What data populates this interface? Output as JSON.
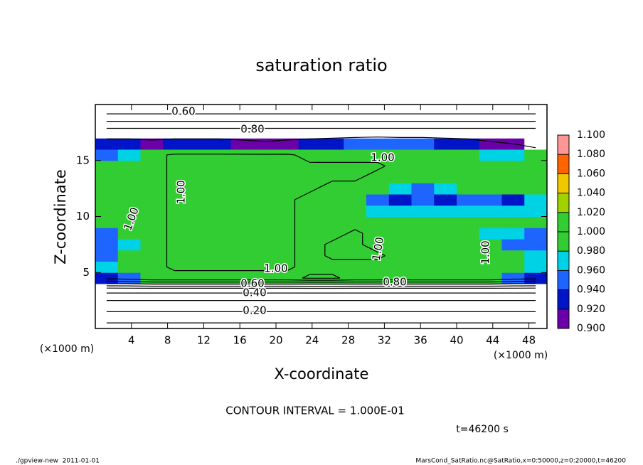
{
  "chart_data": {
    "type": "heatmap",
    "title": "saturation ratio",
    "x_label": "X-coordinate",
    "y_label": "Z-coordinate",
    "x_unit": "(×1000 m)",
    "y_unit": "(×1000 m)",
    "xlim": [
      0,
      50
    ],
    "ylim": [
      0,
      20
    ],
    "xticks": [
      4,
      8,
      12,
      16,
      20,
      24,
      28,
      32,
      36,
      40,
      44,
      48
    ],
    "yticks": [
      5,
      10,
      15
    ],
    "x": [
      1.25,
      3.75,
      6.25,
      8.75,
      11.25,
      13.75,
      16.25,
      18.75,
      21.25,
      23.75,
      26.25,
      28.75,
      31.25,
      33.75,
      36.25,
      38.75,
      41.25,
      43.75,
      46.25,
      48.75
    ],
    "y": [
      0.5,
      1.5,
      2.5,
      3.5,
      4.5,
      5.5,
      6.5,
      7.5,
      8.5,
      9.5,
      10.5,
      11.5,
      12.5,
      13.5,
      14.5,
      15.5,
      16.5,
      17.5,
      18.5,
      19.5
    ],
    "values": [
      [
        0.1,
        0.1,
        0.1,
        0.1,
        0.1,
        0.1,
        0.1,
        0.1,
        0.1,
        0.1,
        0.1,
        0.1,
        0.1,
        0.1,
        0.1,
        0.1,
        0.1,
        0.1,
        0.1,
        0.1
      ],
      [
        0.2,
        0.2,
        0.2,
        0.2,
        0.2,
        0.2,
        0.2,
        0.2,
        0.2,
        0.2,
        0.2,
        0.2,
        0.2,
        0.2,
        0.2,
        0.2,
        0.2,
        0.2,
        0.2,
        0.2
      ],
      [
        0.3,
        0.3,
        0.3,
        0.3,
        0.3,
        0.3,
        0.3,
        0.3,
        0.3,
        0.3,
        0.3,
        0.3,
        0.3,
        0.3,
        0.3,
        0.3,
        0.3,
        0.3,
        0.3,
        0.3
      ],
      [
        0.45,
        0.45,
        0.45,
        0.45,
        0.45,
        0.45,
        0.45,
        0.45,
        0.45,
        0.45,
        0.45,
        0.45,
        0.45,
        0.45,
        0.45,
        0.45,
        0.45,
        0.45,
        0.45,
        0.45
      ],
      [
        0.93,
        0.95,
        0.99,
        0.99,
        0.99,
        0.99,
        0.99,
        0.99,
        0.99,
        1.005,
        1.005,
        0.99,
        0.99,
        0.99,
        0.99,
        0.99,
        0.99,
        0.99,
        0.95,
        0.93
      ],
      [
        0.97,
        0.99,
        0.99,
        1.005,
        1.005,
        1.005,
        1.005,
        1.005,
        1.005,
        0.99,
        0.99,
        0.99,
        0.99,
        0.99,
        0.99,
        0.99,
        0.99,
        0.99,
        0.99,
        0.98
      ],
      [
        0.96,
        0.99,
        0.99,
        1.005,
        1.005,
        1.005,
        1.005,
        1.005,
        1.005,
        0.99,
        1.005,
        1.005,
        1.005,
        0.99,
        0.99,
        0.99,
        0.99,
        0.99,
        0.99,
        0.97
      ],
      [
        0.95,
        0.98,
        0.99,
        1.005,
        1.005,
        1.005,
        1.005,
        1.005,
        1.005,
        0.99,
        1.005,
        1.005,
        0.99,
        0.99,
        0.99,
        0.99,
        0.99,
        0.99,
        0.96,
        0.95
      ],
      [
        0.96,
        0.99,
        0.99,
        1.005,
        1.005,
        1.005,
        1.005,
        1.005,
        1.005,
        0.99,
        0.99,
        1.005,
        0.99,
        0.99,
        0.99,
        0.99,
        0.99,
        0.98,
        0.97,
        0.96
      ],
      [
        0.99,
        0.99,
        0.99,
        1.005,
        1.005,
        1.005,
        1.005,
        1.005,
        1.005,
        0.99,
        0.99,
        0.99,
        0.99,
        0.99,
        0.99,
        0.99,
        0.99,
        0.99,
        0.99,
        0.99
      ],
      [
        0.99,
        0.99,
        0.99,
        1.005,
        1.005,
        1.005,
        1.005,
        1.005,
        1.005,
        0.99,
        0.99,
        0.99,
        0.98,
        0.97,
        0.97,
        0.97,
        0.97,
        0.97,
        0.97,
        0.98
      ],
      [
        0.99,
        0.99,
        0.99,
        1.005,
        1.005,
        1.005,
        1.005,
        1.005,
        1.005,
        0.99,
        0.99,
        0.99,
        0.95,
        0.94,
        0.95,
        0.94,
        0.95,
        0.95,
        0.94,
        0.97
      ],
      [
        0.99,
        0.99,
        0.99,
        1.005,
        1.005,
        1.005,
        1.005,
        1.005,
        1.005,
        1.005,
        0.99,
        0.99,
        0.99,
        0.97,
        0.96,
        0.98,
        0.99,
        0.99,
        0.99,
        0.99
      ],
      [
        0.99,
        0.99,
        0.99,
        1.005,
        1.005,
        1.005,
        1.005,
        1.005,
        1.005,
        1.005,
        1.005,
        1.005,
        0.99,
        0.99,
        0.99,
        0.99,
        0.99,
        0.99,
        0.99,
        0.99
      ],
      [
        0.99,
        0.99,
        0.99,
        1.005,
        1.005,
        1.005,
        1.005,
        1.005,
        1.005,
        1.005,
        1.005,
        1.005,
        1.005,
        0.99,
        0.99,
        0.99,
        0.99,
        0.99,
        0.99,
        0.99
      ],
      [
        0.95,
        0.97,
        0.99,
        1.005,
        1.005,
        1.005,
        1.005,
        1.005,
        1.005,
        0.99,
        0.99,
        0.99,
        0.99,
        0.99,
        0.99,
        0.99,
        0.99,
        0.98,
        0.97,
        0.99
      ],
      [
        0.93,
        0.93,
        0.92,
        0.93,
        0.93,
        0.93,
        0.92,
        0.91,
        0.92,
        0.93,
        0.94,
        0.95,
        0.96,
        0.95,
        0.95,
        0.94,
        0.93,
        0.91,
        0.9,
        0.85
      ],
      [
        0.86,
        0.86,
        0.86,
        0.86,
        0.86,
        0.86,
        0.86,
        0.86,
        0.86,
        0.86,
        0.86,
        0.86,
        0.86,
        0.86,
        0.86,
        0.86,
        0.86,
        0.86,
        0.86,
        0.86
      ],
      [
        0.7,
        0.7,
        0.7,
        0.7,
        0.7,
        0.7,
        0.7,
        0.7,
        0.7,
        0.7,
        0.7,
        0.7,
        0.7,
        0.7,
        0.7,
        0.7,
        0.7,
        0.7,
        0.7,
        0.7
      ],
      [
        0.55,
        0.55,
        0.55,
        0.55,
        0.55,
        0.55,
        0.55,
        0.55,
        0.55,
        0.55,
        0.55,
        0.55,
        0.55,
        0.55,
        0.55,
        0.55,
        0.55,
        0.55,
        0.55,
        0.55
      ]
    ],
    "colorbar_ticks": [
      {
        "value": 0.9,
        "label": "0.900"
      },
      {
        "value": 0.92,
        "label": "0.920"
      },
      {
        "value": 0.94,
        "label": "0.940"
      },
      {
        "value": 0.96,
        "label": "0.960"
      },
      {
        "value": 0.98,
        "label": "0.980"
      },
      {
        "value": 1.0,
        "label": "1.000"
      },
      {
        "value": 1.02,
        "label": "1.020"
      },
      {
        "value": 1.04,
        "label": "1.040"
      },
      {
        "value": 1.06,
        "label": "1.060"
      },
      {
        "value": 1.08,
        "label": "1.080"
      },
      {
        "value": 1.1,
        "label": "1.100"
      }
    ],
    "colors": [
      "#6a00a8",
      "#0014c8",
      "#1e64ff",
      "#00d2e6",
      "#32cd32",
      "#32cd32",
      "#a0d200",
      "#f0c800",
      "#ff6400",
      "#ff9696"
    ],
    "contour_interval": {
      "value": 0.1,
      "label": "CONTOUR INTERVAL = 1.000E-01"
    },
    "contour_labels": [
      "0.60",
      "0.80",
      "1.00",
      "1.00",
      "1.00",
      "1.00",
      "1.00",
      "0.60",
      "0.40",
      "0.20",
      "0.80",
      "1.00"
    ],
    "time_label": "t=46200 s",
    "footer_left": "./gpview-new  2011-01-01",
    "footer_right": "MarsCond_SatRatio.nc@SatRatio,x=0:50000,z=0:20000,t=46200"
  }
}
